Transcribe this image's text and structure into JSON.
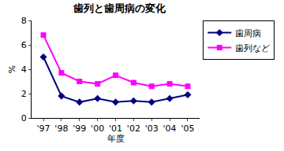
{
  "chart_data": {
    "type": "line",
    "title": "歯列と歯周病の変化",
    "x_label": "年度",
    "y_label": "%",
    "categories": [
      "'97",
      "'98",
      "'99",
      "'00",
      "'01",
      "'02",
      "'03",
      "'04",
      "'05"
    ],
    "series": [
      {
        "name": "歯周病",
        "color": "#000080",
        "marker": "diamond",
        "values": [
          5.0,
          1.8,
          1.3,
          1.6,
          1.3,
          1.4,
          1.3,
          1.6,
          1.9
        ]
      },
      {
        "name": "歯列など",
        "color": "#ff00ff",
        "marker": "square",
        "values": [
          6.8,
          3.7,
          3.0,
          2.8,
          3.5,
          2.9,
          2.6,
          2.8,
          2.6
        ]
      }
    ],
    "ylim": [
      0,
      8
    ],
    "yticks": [
      0,
      2,
      4,
      6,
      8
    ],
    "grid": false,
    "legend": "right"
  }
}
